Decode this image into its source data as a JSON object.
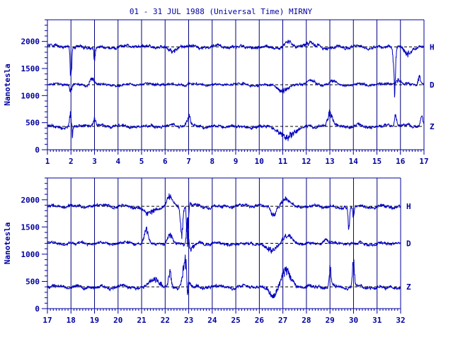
{
  "title": "01 - 31 JUL 1988 (Universal Time) MIRNY",
  "colors": {
    "axis": "#0000a0",
    "trace": "#0000c0",
    "grid": "#000080"
  },
  "chart_data": [
    {
      "type": "line",
      "ylabel": "Nanotesla",
      "xlabel": "",
      "xlim": [
        1,
        17
      ],
      "ylim": [
        0,
        2400
      ],
      "x_ticks": [
        "1",
        "2",
        "3",
        "4",
        "5",
        "6",
        "7",
        "8",
        "9",
        "10",
        "11",
        "12",
        "13",
        "14",
        "15",
        "16",
        "17"
      ],
      "y_ticks": [
        "0",
        "500",
        "1000",
        "1500",
        "2000"
      ],
      "grid": "vertical lines at each day",
      "series": [
        {
          "name": "H",
          "baseline": 1900,
          "noise": 40,
          "events": [
            [
              2.0,
              -800,
              0.03
            ],
            [
              3.0,
              -250,
              0.03
            ],
            [
              6.3,
              -120,
              0.15
            ],
            [
              11.2,
              80,
              0.15
            ],
            [
              12.1,
              70,
              0.3
            ],
            [
              15.75,
              -850,
              0.04
            ],
            [
              16.3,
              -180,
              0.15
            ]
          ]
        },
        {
          "name": "D",
          "baseline": 1200,
          "noise": 30,
          "events": [
            [
              2.0,
              -150,
              0.05
            ],
            [
              2.9,
              120,
              0.1
            ],
            [
              11.0,
              -120,
              0.2
            ],
            [
              12.2,
              80,
              0.2
            ],
            [
              13.1,
              60,
              0.2
            ],
            [
              15.9,
              100,
              0.1
            ],
            [
              16.8,
              180,
              0.05
            ]
          ]
        },
        {
          "name": "Z",
          "baseline": 430,
          "noise": 40,
          "events": [
            [
              2.0,
              350,
              0.05
            ],
            [
              2.05,
              -400,
              0.03
            ],
            [
              3.0,
              150,
              0.05
            ],
            [
              7.0,
              180,
              0.08
            ],
            [
              11.2,
              -230,
              0.3
            ],
            [
              13.0,
              260,
              0.1
            ],
            [
              15.8,
              230,
              0.05
            ],
            [
              16.9,
              180,
              0.05
            ]
          ]
        }
      ]
    },
    {
      "type": "line",
      "ylabel": "Nanotesla",
      "xlabel": "",
      "xlim": [
        17,
        32
      ],
      "ylim": [
        0,
        2400
      ],
      "x_ticks": [
        "17",
        "18",
        "19",
        "20",
        "21",
        "22",
        "23",
        "24",
        "25",
        "26",
        "27",
        "28",
        "29",
        "30",
        "31",
        "32"
      ],
      "y_ticks": [
        "0",
        "500",
        "1000",
        "1500",
        "2000"
      ],
      "grid": "vertical lines at each day",
      "series": [
        {
          "name": "H",
          "baseline": 1880,
          "noise": 40,
          "events": [
            [
              21.3,
              -150,
              0.2
            ],
            [
              22.2,
              180,
              0.1
            ],
            [
              22.7,
              -550,
              0.05
            ],
            [
              22.95,
              -700,
              0.04
            ],
            [
              23.0,
              120,
              0.1
            ],
            [
              26.6,
              -200,
              0.1
            ],
            [
              27.1,
              120,
              0.2
            ],
            [
              29.8,
              -500,
              0.03
            ],
            [
              30.0,
              -200,
              0.03
            ]
          ]
        },
        {
          "name": "D",
          "baseline": 1200,
          "noise": 35,
          "events": [
            [
              21.2,
              250,
              0.08
            ],
            [
              22.2,
              150,
              0.1
            ],
            [
              22.95,
              500,
              0.04
            ],
            [
              23.1,
              -150,
              0.1
            ],
            [
              26.5,
              -150,
              0.2
            ],
            [
              27.2,
              150,
              0.2
            ],
            [
              28.8,
              100,
              0.1
            ]
          ]
        },
        {
          "name": "Z",
          "baseline": 400,
          "noise": 45,
          "events": [
            [
              21.6,
              180,
              0.2
            ],
            [
              22.2,
              300,
              0.06
            ],
            [
              22.85,
              500,
              0.1
            ],
            [
              22.95,
              -420,
              0.03
            ],
            [
              26.6,
              -180,
              0.2
            ],
            [
              27.1,
              330,
              0.2
            ],
            [
              29.0,
              400,
              0.04
            ],
            [
              30.0,
              500,
              0.04
            ]
          ]
        }
      ]
    }
  ]
}
